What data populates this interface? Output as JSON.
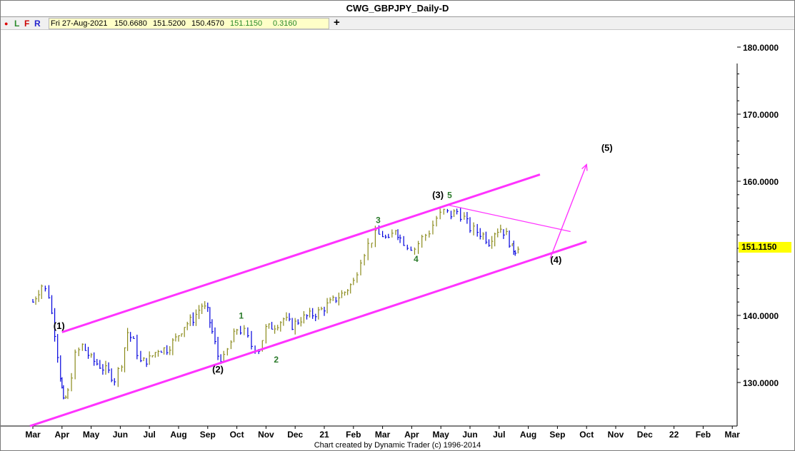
{
  "window": {
    "title": "CWG_GBPJPY_Daily-D"
  },
  "toolbar": {
    "dot_label": "●",
    "l_label": "L",
    "f_label": "F",
    "r_label": "R",
    "crosshair_label": "+"
  },
  "ohlc_bar": {
    "date": "Fri 27-Aug-2021",
    "open": "150.6680",
    "high": "151.5200",
    "low": "150.4570",
    "close": "151.1150",
    "change": "0.3160"
  },
  "footer": "Chart created by Dynamic Trader  (c) 1996-2014",
  "colors": {
    "up_bar": "#8a8a1a",
    "down_bar": "#0000dd",
    "channel": "#ff33ff",
    "wave_minor": "#2a7a2a",
    "wave_major": "#000000",
    "price_box": "#ffff00"
  },
  "chart_data": {
    "type": "line",
    "symbol": "GBPJPY",
    "timeframe": "Daily",
    "ylim": [
      123,
      185
    ],
    "y_ticks": [
      {
        "value": 130,
        "label": "130.0000"
      },
      {
        "value": 140,
        "label": "140.0000"
      },
      {
        "value": 150,
        "label": "150.0000"
      },
      {
        "value": 160,
        "label": "160.0000"
      },
      {
        "value": 170,
        "label": "170.0000"
      },
      {
        "value": 180,
        "label": "180.0000"
      }
    ],
    "x_ticks": [
      "Mar",
      "Apr",
      "May",
      "Jun",
      "Jul",
      "Aug",
      "Sep",
      "Oct",
      "Nov",
      "Dec",
      "21",
      "Feb",
      "Mar",
      "Apr",
      "May",
      "Jun",
      "Jul",
      "Aug",
      "Sep",
      "Oct",
      "Nov",
      "Dec",
      "22",
      "Feb",
      "Mar"
    ],
    "last_price": "151.1150",
    "price_path_note": "approximate weekly closes",
    "series": [
      {
        "values": [
          [
            0,
            142.0
          ],
          [
            0.3,
            144.5
          ],
          [
            0.55,
            143.0
          ],
          [
            0.75,
            137.5
          ],
          [
            0.95,
            131.0
          ],
          [
            1.05,
            127.0
          ],
          [
            1.2,
            128.5
          ],
          [
            1.45,
            134.0
          ],
          [
            1.7,
            135.5
          ],
          [
            2.0,
            133.5
          ],
          [
            2.3,
            132.5
          ],
          [
            2.6,
            131.5
          ],
          [
            2.8,
            130.5
          ],
          [
            3.05,
            133.0
          ],
          [
            3.25,
            137.5
          ],
          [
            3.45,
            136.0
          ],
          [
            3.7,
            133.0
          ],
          [
            4.0,
            133.5
          ],
          [
            4.3,
            135.0
          ],
          [
            4.6,
            135.0
          ],
          [
            4.9,
            136.5
          ],
          [
            5.2,
            138.5
          ],
          [
            5.5,
            139.5
          ],
          [
            5.8,
            141.5
          ],
          [
            6.0,
            140.5
          ],
          [
            6.15,
            137.5
          ],
          [
            6.35,
            134.0
          ],
          [
            6.55,
            133.5
          ],
          [
            6.8,
            136.0
          ],
          [
            7.0,
            138.0
          ],
          [
            7.25,
            137.5
          ],
          [
            7.5,
            135.5
          ],
          [
            7.75,
            135.0
          ],
          [
            8.0,
            138.0
          ],
          [
            8.3,
            138.5
          ],
          [
            8.6,
            139.5
          ],
          [
            8.9,
            138.5
          ],
          [
            9.2,
            139.5
          ],
          [
            9.5,
            140.0
          ],
          [
            9.8,
            140.5
          ],
          [
            10.1,
            141.5
          ],
          [
            10.4,
            142.5
          ],
          [
            10.7,
            143.5
          ],
          [
            11.0,
            145.0
          ],
          [
            11.25,
            148.5
          ],
          [
            11.5,
            150.5
          ],
          [
            11.75,
            152.0
          ],
          [
            12.0,
            152.0
          ],
          [
            12.2,
            151.0
          ],
          [
            12.45,
            153.0
          ],
          [
            12.6,
            151.5
          ],
          [
            12.85,
            150.5
          ],
          [
            13.1,
            150.0
          ],
          [
            13.35,
            151.5
          ],
          [
            13.6,
            152.5
          ],
          [
            13.85,
            154.5
          ],
          [
            14.1,
            155.5
          ],
          [
            14.35,
            155.0
          ],
          [
            14.55,
            155.5
          ],
          [
            14.8,
            154.5
          ],
          [
            15.0,
            153.0
          ],
          [
            15.25,
            152.5
          ],
          [
            15.45,
            152.0
          ],
          [
            15.65,
            151.0
          ],
          [
            15.85,
            152.5
          ],
          [
            16.05,
            153.0
          ],
          [
            16.25,
            152.0
          ],
          [
            16.45,
            150.0
          ],
          [
            16.55,
            149.8
          ],
          [
            16.75,
            151.1
          ]
        ]
      }
    ],
    "channel_lines": [
      {
        "name": "upper",
        "from": [
          1.0,
          137.5
        ],
        "to": [
          17.4,
          161.0
        ]
      },
      {
        "name": "lower",
        "from": [
          -0.1,
          123.5
        ],
        "to": [
          19.0,
          151.0
        ]
      },
      {
        "name": "triangle-top",
        "from": [
          14.2,
          156.5
        ],
        "to": [
          18.45,
          152.5
        ]
      }
    ],
    "projection": {
      "from": [
        17.75,
        148.5
      ],
      "to": [
        19.0,
        162.5
      ]
    },
    "annotations": [
      {
        "text": "(1)",
        "x": 0.9,
        "y": 138.0,
        "style": "major"
      },
      {
        "text": "(2)",
        "x": 6.35,
        "y": 131.5,
        "style": "major"
      },
      {
        "text": "(3)",
        "x": 13.9,
        "y": 157.5,
        "style": "major"
      },
      {
        "text": "(4)",
        "x": 17.95,
        "y": 147.8,
        "style": "major"
      },
      {
        "text": "(5)",
        "x": 19.7,
        "y": 164.5,
        "style": "major"
      },
      {
        "text": "1",
        "x": 7.15,
        "y": 139.5,
        "style": "minor"
      },
      {
        "text": "2",
        "x": 8.35,
        "y": 133.0,
        "style": "minor"
      },
      {
        "text": "3",
        "x": 11.85,
        "y": 153.8,
        "style": "minor"
      },
      {
        "text": "4",
        "x": 13.15,
        "y": 148.0,
        "style": "minor"
      },
      {
        "text": "5",
        "x": 14.3,
        "y": 157.5,
        "style": "minor"
      }
    ]
  }
}
